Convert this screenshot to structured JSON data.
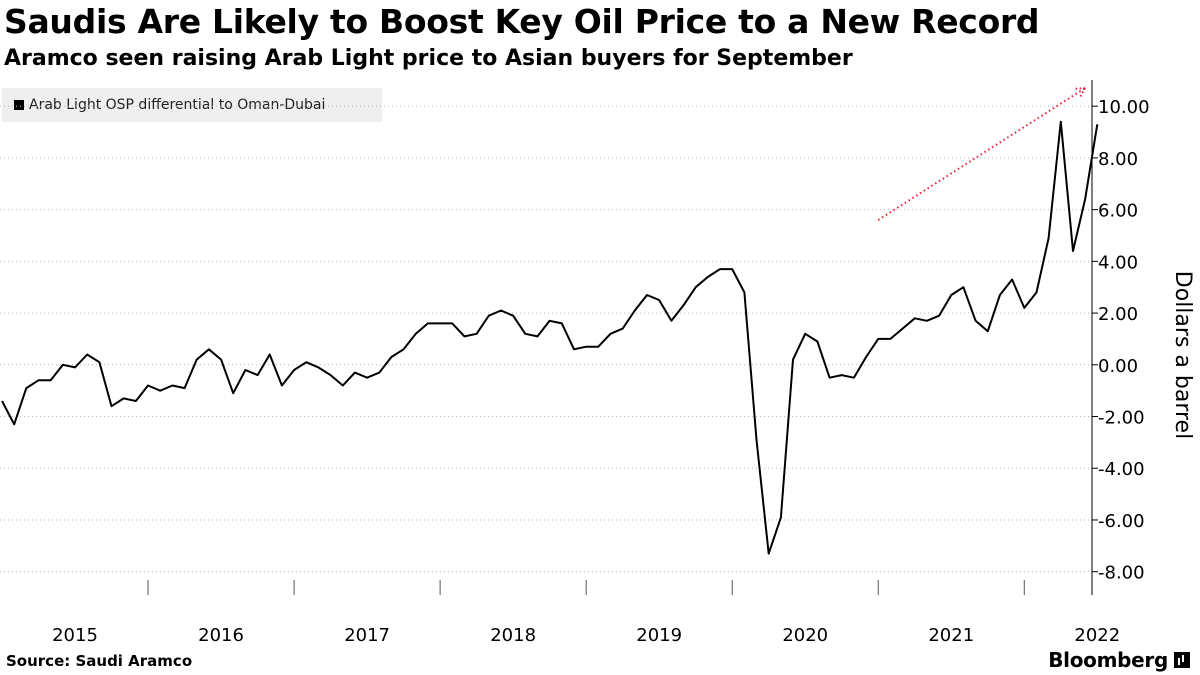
{
  "header": {
    "title": "Saudis Are Likely to Boost Key Oil Price to a New Record",
    "subtitle": "Aramco seen raising Arab Light price to Asian buyers for September"
  },
  "footer": {
    "source": "Source:  Saudi Aramco",
    "brand": "Bloomberg"
  },
  "colors": {
    "line": "#000000",
    "arrow": "#e8213a",
    "legend_bg": "#efefef",
    "grid": "#b8b8b8"
  },
  "chart_data": {
    "type": "line",
    "title": "Saudis Are Likely to Boost Key Oil Price to a New Record",
    "subtitle": "Aramco seen raising Arab Light price to Asian buyers for September",
    "ylabel": "Dollars a barrel",
    "xlabel": "",
    "ylim": [
      -9,
      11
    ],
    "y_ticks": [
      10,
      8,
      6,
      4,
      2,
      0,
      -2,
      -4,
      -6,
      -8
    ],
    "y_tick_labels": [
      "10.00",
      "8.00",
      "6.00",
      "4.00",
      "2.00",
      "0.00",
      "-2.00",
      "-4.00",
      "-6.00",
      "-8.00"
    ],
    "x_year_labels": [
      "2015",
      "2016",
      "2017",
      "2018",
      "2019",
      "2020",
      "2021",
      "2022"
    ],
    "legend_position": "top-left",
    "grid": "horizontal dotted",
    "series": [
      {
        "name": "Arab Light OSP differential to Oman-Dubai",
        "start": "2015-01",
        "frequency": "monthly",
        "values": [
          -1.4,
          -2.3,
          -0.9,
          -0.6,
          -0.6,
          0.0,
          -0.1,
          0.4,
          0.1,
          -1.6,
          -1.3,
          -1.4,
          -0.8,
          -1.0,
          -0.8,
          -0.9,
          0.2,
          0.6,
          0.2,
          -1.1,
          -0.2,
          -0.4,
          0.4,
          -0.8,
          -0.2,
          0.1,
          -0.1,
          -0.4,
          -0.8,
          -0.3,
          -0.5,
          -0.3,
          0.3,
          0.6,
          1.2,
          1.6,
          1.6,
          1.6,
          1.1,
          1.2,
          1.9,
          2.1,
          1.9,
          1.2,
          1.1,
          1.7,
          1.6,
          0.6,
          0.7,
          0.7,
          1.2,
          1.4,
          2.1,
          2.7,
          2.5,
          1.7,
          2.3,
          3.0,
          3.4,
          3.7,
          3.7,
          2.8,
          -2.9,
          -7.3,
          -5.9,
          0.2,
          1.2,
          0.9,
          -0.5,
          -0.4,
          -0.5,
          0.3,
          1.0,
          1.0,
          1.4,
          1.8,
          1.7,
          1.9,
          2.7,
          3.0,
          1.7,
          1.3,
          2.7,
          3.3,
          2.2,
          2.8,
          4.9,
          9.4,
          4.4,
          6.4,
          9.3
        ]
      }
    ],
    "annotation": {
      "type": "dotted-arrow",
      "from": [
        "2021-01",
        5.6
      ],
      "to": [
        "2022-06",
        10.7
      ]
    }
  }
}
